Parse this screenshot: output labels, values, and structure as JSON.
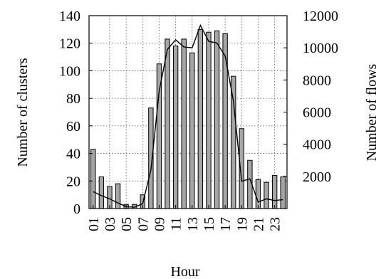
{
  "chart_data": {
    "type": "bar",
    "xlabel": "Hour",
    "ylabel_left": "Number of clusters",
    "ylabel_right": "Number of flows",
    "categories": [
      "01",
      "02",
      "03",
      "04",
      "05",
      "06",
      "07",
      "08",
      "09",
      "10",
      "11",
      "12",
      "13",
      "14",
      "15",
      "16",
      "17",
      "18",
      "19",
      "20",
      "21",
      "22",
      "23",
      "24"
    ],
    "x_tick_labels": [
      "01",
      "03",
      "05",
      "07",
      "09",
      "11",
      "13",
      "15",
      "17",
      "19",
      "21",
      "23"
    ],
    "ylim_left": [
      0,
      140
    ],
    "yticks_left": [
      "0",
      "20",
      "40",
      "60",
      "80",
      "100",
      "120",
      "140"
    ],
    "ylim_right": [
      0,
      12000
    ],
    "yticks_right": [
      "2000",
      "4000",
      "6000",
      "8000",
      "10000",
      "12000"
    ],
    "grid": true,
    "series": [
      {
        "axis": "left",
        "type": "bar",
        "values": [
          43,
          23,
          16,
          18,
          3,
          3,
          10,
          73,
          105,
          123,
          118,
          123,
          113,
          130,
          128,
          129,
          127,
          96,
          58,
          35,
          21,
          19,
          24,
          23
        ]
      },
      {
        "axis": "right",
        "type": "line",
        "values": [
          1050,
          800,
          600,
          350,
          120,
          80,
          300,
          2400,
          7300,
          9900,
          10500,
          10050,
          10000,
          11400,
          10400,
          10300,
          9500,
          6700,
          1700,
          1850,
          400,
          600,
          500,
          550
        ]
      }
    ],
    "colors": {
      "bar_fill": "#a6a6a6",
      "line": "#000000"
    }
  }
}
